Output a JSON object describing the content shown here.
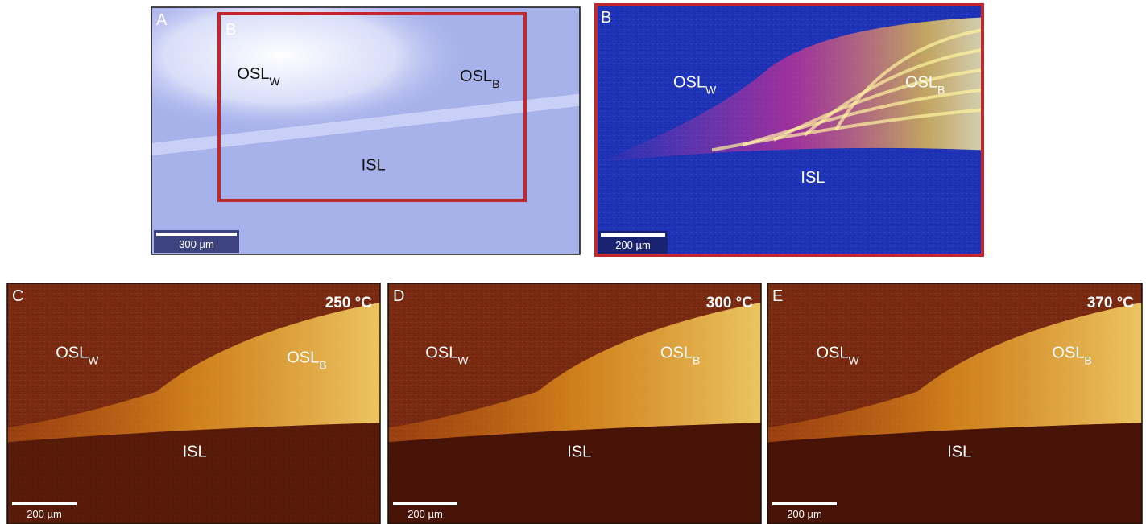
{
  "panels": [
    {
      "letter": "A",
      "inset_letter": "B",
      "labels": [
        {
          "main": "OSL",
          "sub": "W"
        },
        {
          "main": "OSL",
          "sub": "B"
        },
        {
          "main": "ISL"
        }
      ],
      "scale_bar": "300 µm"
    },
    {
      "letter": "B",
      "labels": [
        {
          "main": "OSL",
          "sub": "W"
        },
        {
          "main": "OSL",
          "sub": "B"
        },
        {
          "main": "ISL"
        }
      ],
      "scale_bar": "200 µm"
    },
    {
      "letter": "C",
      "temperature": "250 °C",
      "labels": [
        {
          "main": "OSL",
          "sub": "W"
        },
        {
          "main": "OSL",
          "sub": "B"
        },
        {
          "main": "ISL"
        }
      ],
      "scale_bar": "200 µm"
    },
    {
      "letter": "D",
      "temperature": "300 °C",
      "labels": [
        {
          "main": "OSL",
          "sub": "W"
        },
        {
          "main": "OSL",
          "sub": "B"
        },
        {
          "main": "ISL"
        }
      ],
      "scale_bar": "200 µm"
    },
    {
      "letter": "E",
      "temperature": "370 °C",
      "labels": [
        {
          "main": "OSL",
          "sub": "W"
        },
        {
          "main": "OSL",
          "sub": "B"
        },
        {
          "main": "ISL"
        }
      ],
      "scale_bar": "200 µm"
    }
  ]
}
